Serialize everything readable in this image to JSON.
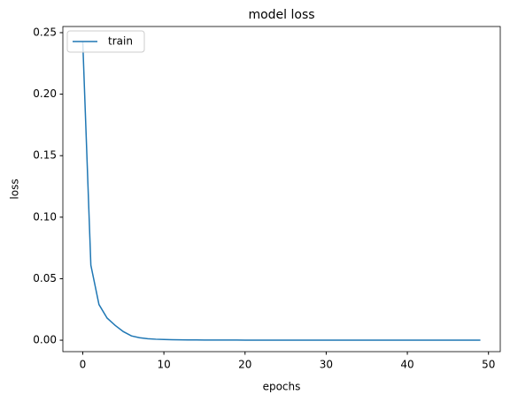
{
  "chart_data": {
    "type": "line",
    "title": "model loss",
    "x_label": "epochs",
    "y_label": "loss",
    "x": [
      0,
      1,
      2,
      3,
      4,
      5,
      6,
      7,
      8,
      9,
      10,
      11,
      12,
      13,
      14,
      15,
      16,
      17,
      18,
      19,
      20,
      21,
      22,
      23,
      24,
      25,
      26,
      27,
      28,
      29,
      30,
      31,
      32,
      33,
      34,
      35,
      36,
      37,
      38,
      39,
      40,
      41,
      42,
      43,
      44,
      45,
      46,
      47,
      48,
      49
    ],
    "series": [
      {
        "name": "train",
        "color": "#1f77b4",
        "values": [
          0.243,
          0.061,
          0.029,
          0.018,
          0.012,
          0.007,
          0.0035,
          0.002,
          0.0012,
          0.0008,
          0.0006,
          0.0004,
          0.0003,
          0.00025,
          0.0002,
          0.00017,
          0.00014,
          0.00012,
          0.0001,
          9e-05,
          8e-05,
          7e-05,
          6e-05,
          5e-05,
          5e-05,
          4e-05,
          4e-05,
          3e-05,
          3e-05,
          3e-05,
          2e-05,
          2e-05,
          2e-05,
          2e-05,
          2e-05,
          1e-05,
          1e-05,
          1e-05,
          1e-05,
          1e-05,
          1e-05,
          1e-05,
          1e-05,
          1e-05,
          1e-05,
          1e-05,
          1e-05,
          1e-05,
          1e-05,
          1e-05
        ]
      }
    ],
    "xlim": [
      -2.45,
      51.45
    ],
    "ylim": [
      -0.0093,
      0.255
    ],
    "xticks": [
      0,
      10,
      20,
      30,
      40,
      50
    ],
    "yticks": [
      {
        "value": 0,
        "label": "0.00"
      },
      {
        "value": 0.05,
        "label": "0.05"
      },
      {
        "value": 0.1,
        "label": "0.10"
      },
      {
        "value": 0.15,
        "label": "0.15"
      },
      {
        "value": 0.2,
        "label": "0.20"
      },
      {
        "value": 0.25,
        "label": "0.25"
      }
    ],
    "legend": "upper left",
    "grid": false
  }
}
